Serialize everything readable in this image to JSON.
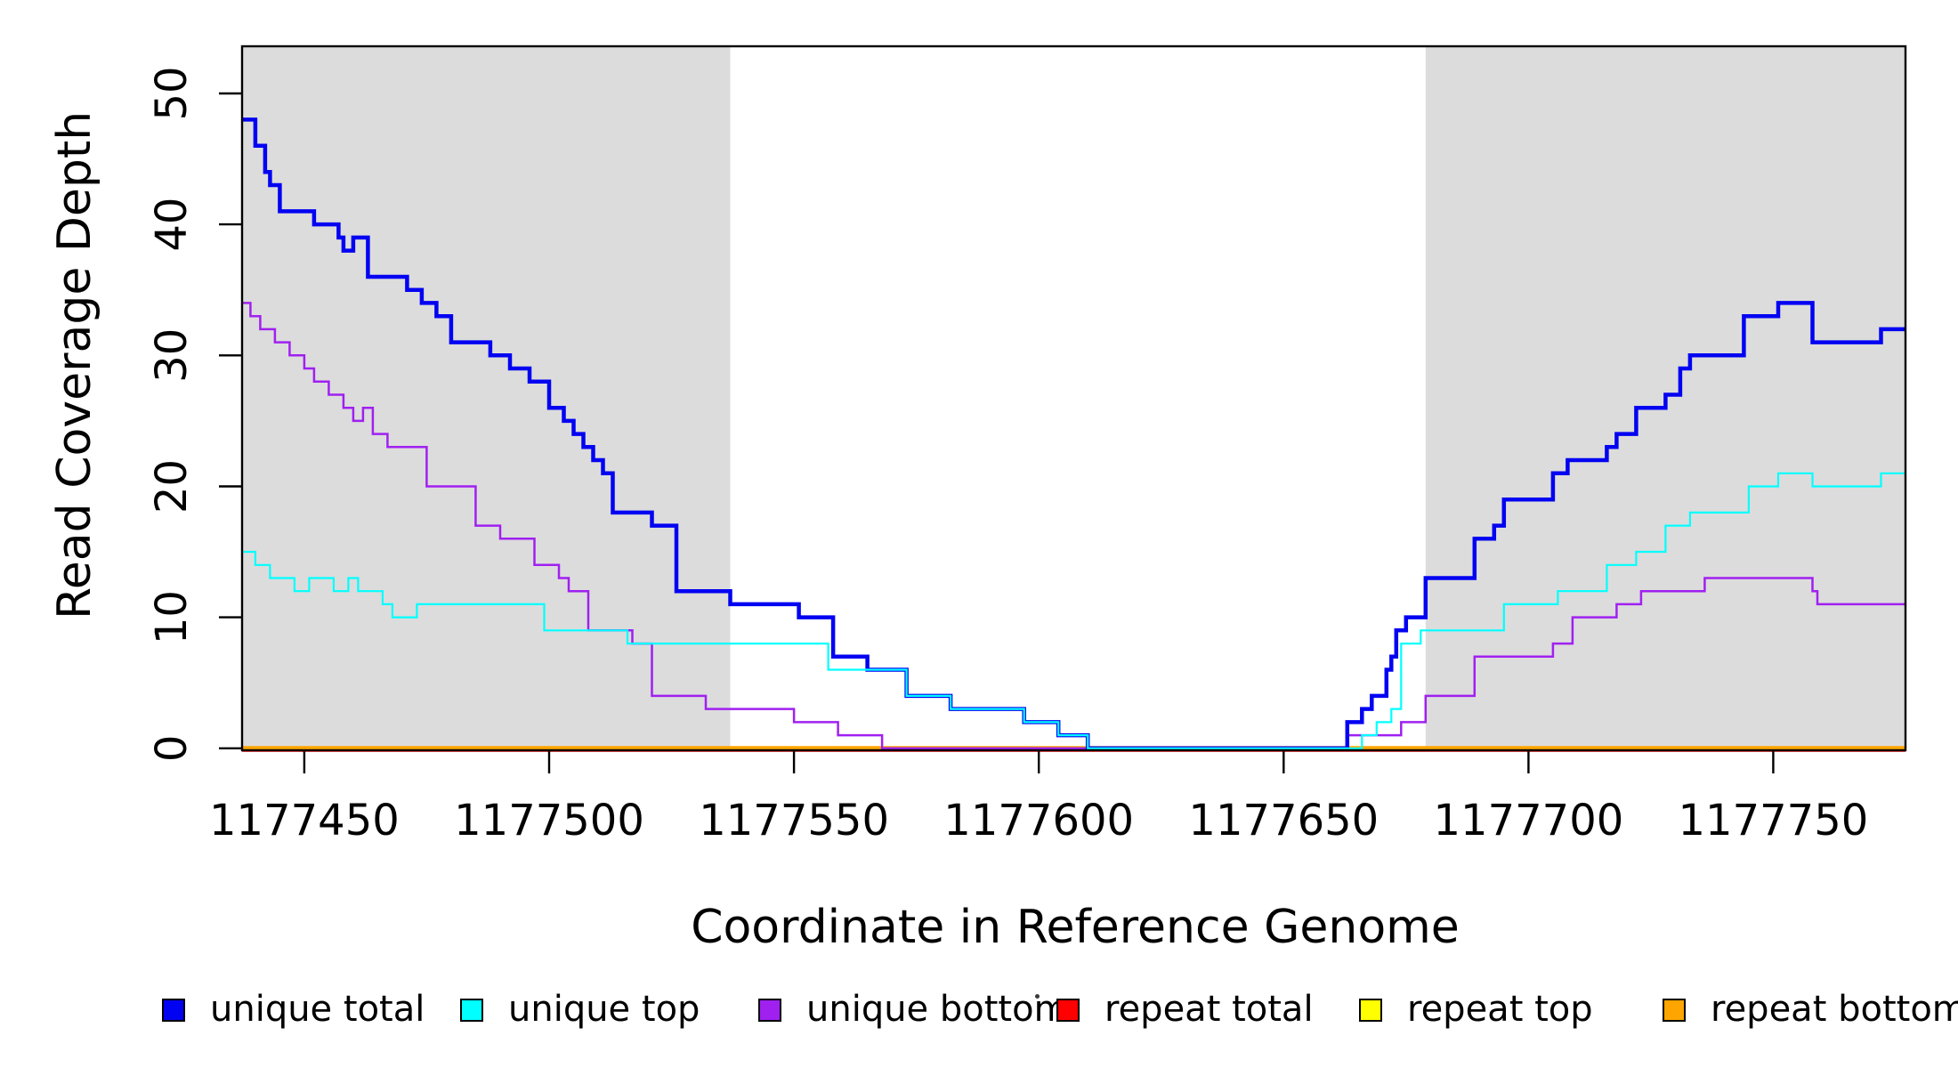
{
  "axes": {
    "x": {
      "label": "Coordinate in Reference Genome"
    },
    "y": {
      "label": "Read Coverage Depth"
    }
  },
  "legend": {
    "items": [
      {
        "label": "unique total",
        "color": "#0202F2"
      },
      {
        "label": "unique top",
        "color": "#00FFFF"
      },
      {
        "label": "unique bottom",
        "color": "#A020F0"
      },
      {
        "label": "repeat total",
        "color": "#FF0000"
      },
      {
        "label": "repeat top",
        "color": "#FFFF00"
      },
      {
        "label": "repeat bottom",
        "color": "#FFA500"
      }
    ]
  },
  "chart_data": {
    "type": "line",
    "style": "step-after",
    "title": "",
    "xlabel": "Coordinate in Reference Genome",
    "ylabel": "Read Coverage Depth",
    "xlim": [
      1177437.3,
      1177777.0
    ],
    "ylim": [
      -0.15,
      53.6
    ],
    "grid": false,
    "legend_position": "bottom",
    "x_ticks": [
      {
        "value": 1177450,
        "label": "1177450"
      },
      {
        "value": 1177500,
        "label": "1177500"
      },
      {
        "value": 1177550,
        "label": "1177550"
      },
      {
        "value": 1177600,
        "label": "1177600"
      },
      {
        "value": 1177650,
        "label": "1177650"
      },
      {
        "value": 1177700,
        "label": "1177700"
      },
      {
        "value": 1177750,
        "label": "1177750"
      }
    ],
    "y_ticks": [
      {
        "value": 0,
        "label": "0"
      },
      {
        "value": 10,
        "label": "10"
      },
      {
        "value": 20,
        "label": "20"
      },
      {
        "value": 30,
        "label": "30"
      },
      {
        "value": 40,
        "label": "40"
      },
      {
        "value": 50,
        "label": "50"
      }
    ],
    "shaded_regions": [
      {
        "from": 1177437.3,
        "to": 1177537,
        "color": "#DCDCDC"
      },
      {
        "from": 1177679,
        "to": 1177777,
        "color": "#DCDCDC"
      }
    ],
    "series": [
      {
        "name": "repeat top",
        "color": "#FFFF00",
        "width": 3,
        "dy": 0,
        "points": [
          [
            1177437.3,
            0
          ]
        ]
      },
      {
        "name": "repeat total",
        "color": "#FF0000",
        "width": 3,
        "dy": 2.5,
        "points": [
          [
            1177437.3,
            0
          ]
        ]
      },
      {
        "name": "repeat bottom",
        "color": "#FFA500",
        "width": 5,
        "dy": 0,
        "points": [
          [
            1177437.3,
            0
          ]
        ]
      },
      {
        "name": "unique bottom",
        "color": "#A020F0",
        "width": 2.5,
        "dy": 0,
        "points": [
          [
            1177437.3,
            34
          ],
          [
            1177439,
            33
          ],
          [
            1177441,
            32
          ],
          [
            1177444,
            31
          ],
          [
            1177447,
            30
          ],
          [
            1177450,
            29
          ],
          [
            1177452,
            28
          ],
          [
            1177455,
            27
          ],
          [
            1177458,
            26
          ],
          [
            1177460,
            25
          ],
          [
            1177462,
            26
          ],
          [
            1177464,
            24
          ],
          [
            1177467,
            23
          ],
          [
            1177475,
            20
          ],
          [
            1177485,
            17
          ],
          [
            1177490,
            16
          ],
          [
            1177497,
            14
          ],
          [
            1177502,
            13
          ],
          [
            1177504,
            12
          ],
          [
            1177508,
            9
          ],
          [
            1177517,
            8
          ],
          [
            1177521,
            4
          ],
          [
            1177532,
            3
          ],
          [
            1177550,
            2
          ],
          [
            1177559,
            1
          ],
          [
            1177568,
            0
          ],
          [
            1177663,
            1
          ],
          [
            1177674,
            2
          ],
          [
            1177679,
            4
          ],
          [
            1177689,
            7
          ],
          [
            1177705,
            8
          ],
          [
            1177709,
            10
          ],
          [
            1177718,
            11
          ],
          [
            1177723,
            12
          ],
          [
            1177736,
            13
          ],
          [
            1177758,
            12
          ],
          [
            1177759,
            11
          ]
        ]
      },
      {
        "name": "unique total",
        "color": "#0202F2",
        "width": 4.5,
        "dy": 0,
        "points": [
          [
            1177437.3,
            48
          ],
          [
            1177440,
            46
          ],
          [
            1177442,
            44
          ],
          [
            1177443,
            43
          ],
          [
            1177445,
            41
          ],
          [
            1177452,
            40
          ],
          [
            1177457,
            39
          ],
          [
            1177458,
            38
          ],
          [
            1177460,
            39
          ],
          [
            1177463,
            36
          ],
          [
            1177471,
            35
          ],
          [
            1177474,
            34
          ],
          [
            1177477,
            33
          ],
          [
            1177480,
            31
          ],
          [
            1177488,
            30
          ],
          [
            1177492,
            29
          ],
          [
            1177496,
            28
          ],
          [
            1177500,
            26
          ],
          [
            1177503,
            25
          ],
          [
            1177505,
            24
          ],
          [
            1177507,
            23
          ],
          [
            1177509,
            22
          ],
          [
            1177511,
            21
          ],
          [
            1177513,
            18
          ],
          [
            1177521,
            17
          ],
          [
            1177526,
            12
          ],
          [
            1177537,
            11
          ],
          [
            1177551,
            10
          ],
          [
            1177558,
            7
          ],
          [
            1177565,
            6
          ],
          [
            1177573,
            4
          ],
          [
            1177582,
            3
          ],
          [
            1177597,
            2
          ],
          [
            1177604,
            1
          ],
          [
            1177610,
            0
          ],
          [
            1177663,
            2
          ],
          [
            1177666,
            3
          ],
          [
            1177668,
            4
          ],
          [
            1177671,
            6
          ],
          [
            1177672,
            7
          ],
          [
            1177673,
            9
          ],
          [
            1177675,
            10
          ],
          [
            1177679,
            13
          ],
          [
            1177689,
            16
          ],
          [
            1177693,
            17
          ],
          [
            1177695,
            19
          ],
          [
            1177705,
            21
          ],
          [
            1177708,
            22
          ],
          [
            1177716,
            23
          ],
          [
            1177718,
            24
          ],
          [
            1177722,
            26
          ],
          [
            1177728,
            27
          ],
          [
            1177731,
            29
          ],
          [
            1177733,
            30
          ],
          [
            1177744,
            33
          ],
          [
            1177751,
            34
          ],
          [
            1177758,
            31
          ],
          [
            1177772,
            32
          ]
        ]
      },
      {
        "name": "unique top",
        "color": "#00FFFF",
        "width": 2.2,
        "dy": 0,
        "points": [
          [
            1177437.3,
            15
          ],
          [
            1177440,
            14
          ],
          [
            1177443,
            13
          ],
          [
            1177448,
            12
          ],
          [
            1177451,
            13
          ],
          [
            1177456,
            12
          ],
          [
            1177459,
            13
          ],
          [
            1177461,
            12
          ],
          [
            1177466,
            11
          ],
          [
            1177468,
            10
          ],
          [
            1177473,
            11
          ],
          [
            1177499,
            9
          ],
          [
            1177516,
            8
          ],
          [
            1177557,
            6
          ],
          [
            1177573,
            4
          ],
          [
            1177582,
            3
          ],
          [
            1177597,
            2
          ],
          [
            1177604,
            1
          ],
          [
            1177610,
            0
          ],
          [
            1177666,
            1
          ],
          [
            1177669,
            2
          ],
          [
            1177672,
            3
          ],
          [
            1177674,
            8
          ],
          [
            1177678,
            9
          ],
          [
            1177695,
            11
          ],
          [
            1177706,
            12
          ],
          [
            1177716,
            14
          ],
          [
            1177722,
            15
          ],
          [
            1177728,
            17
          ],
          [
            1177733,
            18
          ],
          [
            1177745,
            20
          ],
          [
            1177751,
            21
          ],
          [
            1177758,
            20
          ],
          [
            1177772,
            21
          ]
        ]
      }
    ]
  }
}
